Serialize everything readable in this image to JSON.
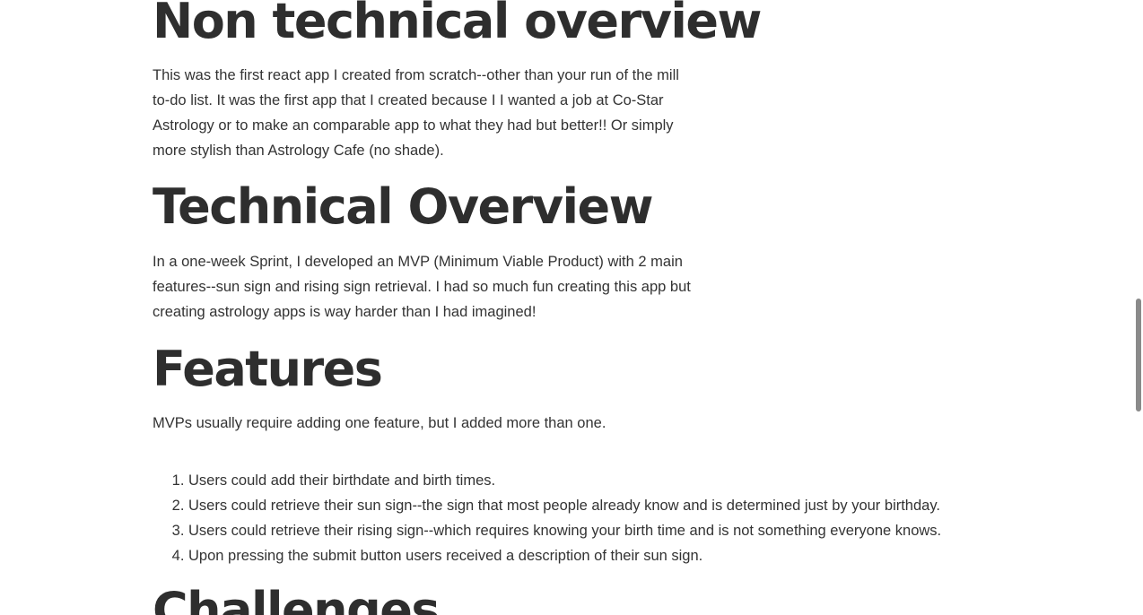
{
  "sections": {
    "non_technical": {
      "heading": "Non technical overview",
      "paragraph_lines": [
        "This was the first react app I created from scratch--other than your run of the mill",
        "to-do list. It was the first app that I created because I I wanted a job at Co-Star",
        "Astrology or to make an comparable app to what they had but better!! Or simply",
        "more stylish than Astrology Cafe (no shade)."
      ]
    },
    "technical": {
      "heading": "Technical Overview",
      "paragraph_lines": [
        "In a one-week Sprint, I developed an MVP (Minimum Viable Product) with 2 main",
        "features--sun sign and rising sign retrieval. I had so much fun creating this app but",
        "creating astrology apps is way harder than I had imagined!"
      ]
    },
    "features": {
      "heading": "Features",
      "intro": "MVPs usually require adding one feature, but I added more than one.",
      "items": [
        "Users could add their birthdate and birth times.",
        "Users could retrieve their sun sign--the sign that most people already know and is determined just by your birthday.",
        "Users could retrieve their rising sign--which requires knowing your birth time and is not something everyone knows.",
        "Upon pressing the submit button users received a description of their sun sign."
      ]
    },
    "challenges": {
      "heading": "Challenges"
    }
  }
}
